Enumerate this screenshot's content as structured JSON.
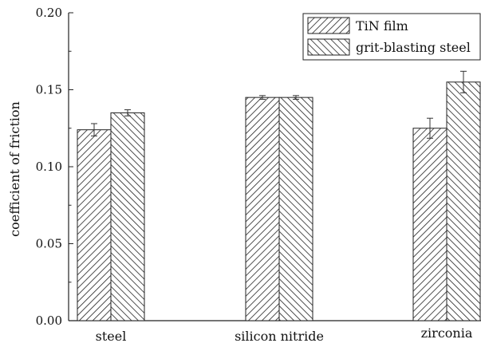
{
  "chart_data": {
    "type": "bar",
    "title": "",
    "xlabel": "",
    "ylabel": "coefficient of friction",
    "ylim": [
      0,
      0.2
    ],
    "yticks": [
      "0.00",
      "0.05",
      "0.10",
      "0.15",
      "0.20"
    ],
    "yticks_values": [
      0,
      0.05,
      0.1,
      0.15,
      0.2
    ],
    "categories": [
      "steel",
      "silicon nitride",
      "zirconia"
    ],
    "series": [
      {
        "name": "TiN film",
        "values": [
          0.124,
          0.145,
          0.125
        ],
        "errors": [
          0.004,
          0.0012,
          0.0065
        ],
        "pattern": "hatch-right"
      },
      {
        "name": "grit-blasting steel",
        "values": [
          0.135,
          0.145,
          0.155
        ],
        "errors": [
          0.002,
          0.0012,
          0.007
        ],
        "pattern": "hatch-left"
      }
    ],
    "legend_position": "top-right",
    "grid": false,
    "colors": {
      "stroke": "#222222",
      "fill": "#ffffff"
    }
  }
}
